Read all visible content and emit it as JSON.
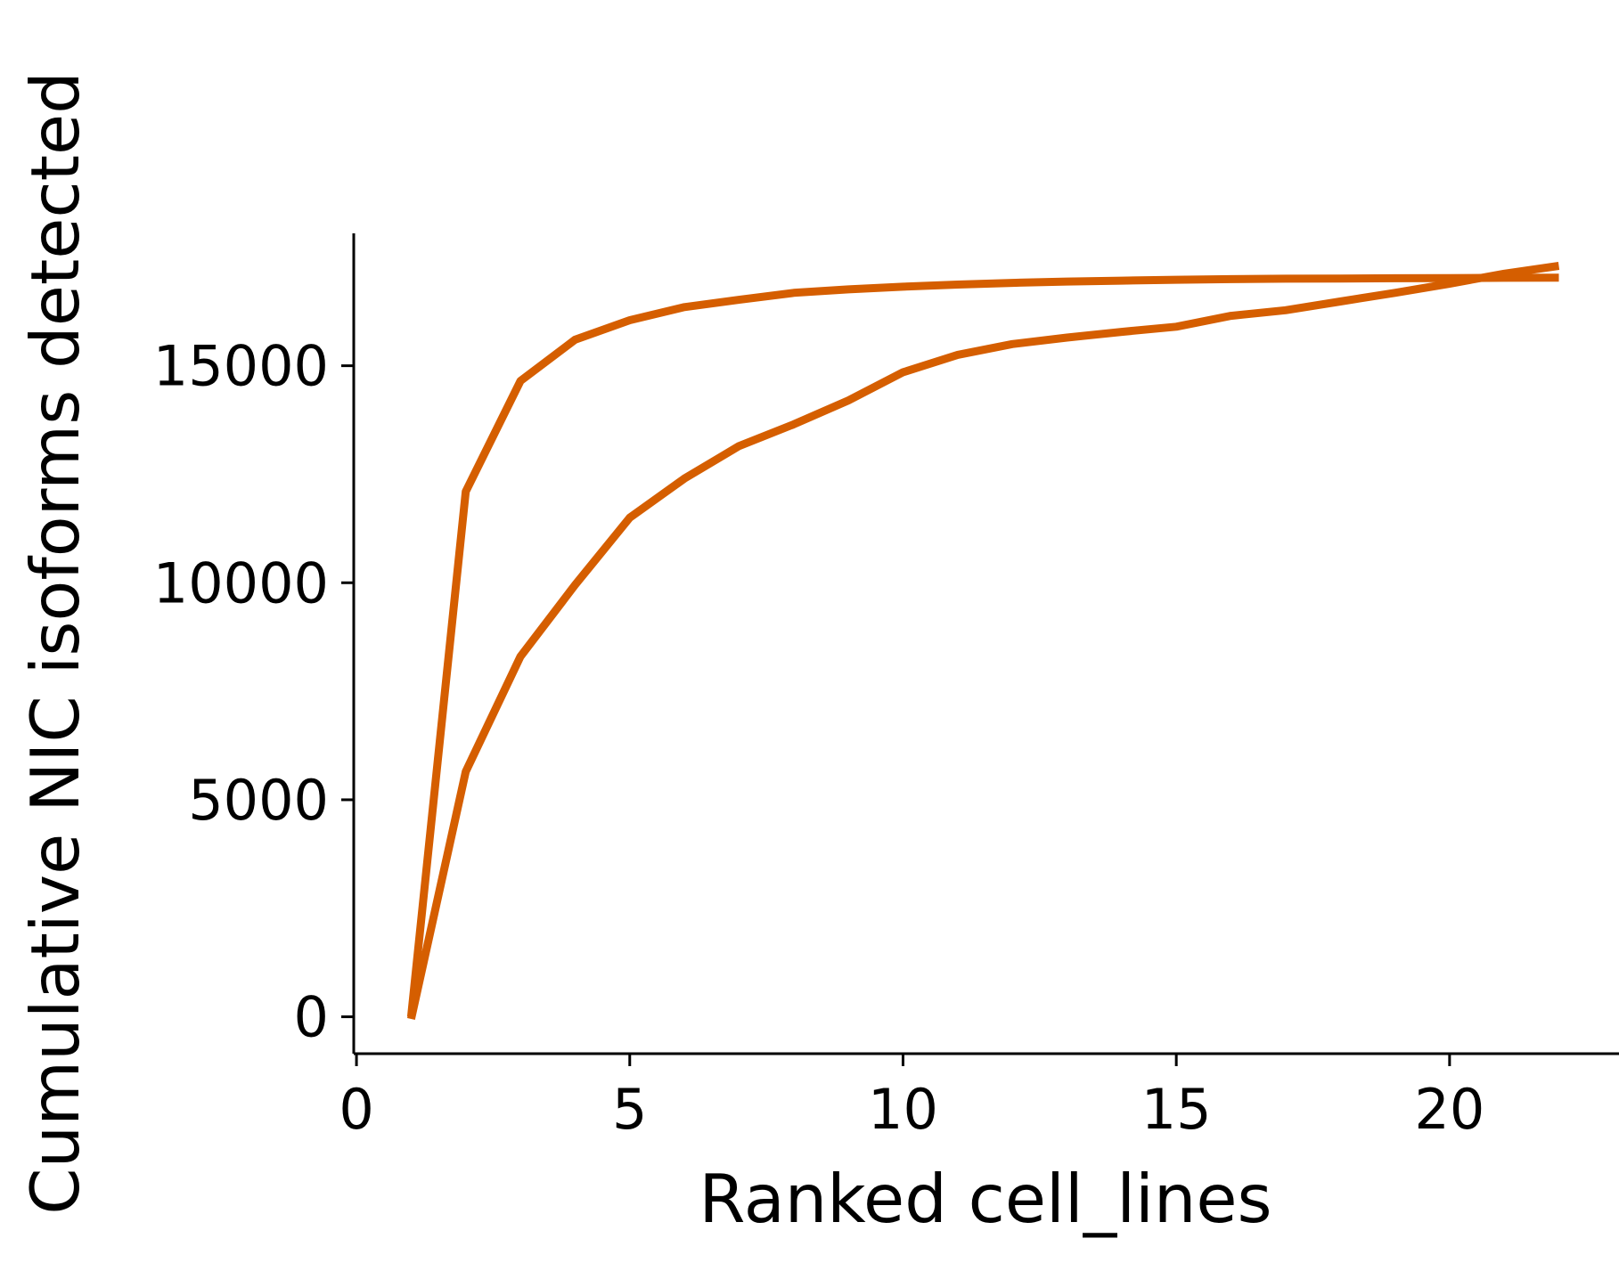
{
  "chart_data": {
    "type": "line",
    "xlabel": "Ranked cell_lines",
    "ylabel": "Cumulative NIC isoforms detected",
    "xlim": [
      -0.05,
      23.1
    ],
    "ylim": [
      -850,
      18050
    ],
    "xticks": [
      0,
      5,
      10,
      15,
      20
    ],
    "yticks": [
      0,
      5000,
      10000,
      15000
    ],
    "x_tick_labels": [
      "0",
      "5",
      "10",
      "15",
      "20"
    ],
    "y_tick_labels": [
      "0",
      "5000",
      "10000",
      "15000"
    ],
    "grid": false,
    "line_color": "#d55e00",
    "series": [
      {
        "x": [
          1,
          2,
          3,
          4,
          5,
          6,
          7,
          8,
          9,
          10,
          11,
          12,
          13,
          14,
          15,
          16,
          17,
          18,
          19,
          20,
          21,
          22
        ],
        "y": [
          0,
          12100,
          14650,
          15600,
          16050,
          16350,
          16520,
          16680,
          16760,
          16820,
          16870,
          16910,
          16940,
          16960,
          16980,
          16995,
          17005,
          17010,
          17015,
          17020,
          17025,
          17030
        ]
      },
      {
        "x": [
          1,
          2,
          3,
          4,
          5,
          6,
          7,
          8,
          9,
          10,
          11,
          12,
          13,
          14,
          15,
          16,
          17,
          18,
          19,
          20,
          21,
          22
        ],
        "y": [
          -50,
          5650,
          8300,
          9950,
          11500,
          12400,
          13150,
          13650,
          14200,
          14850,
          15250,
          15500,
          15650,
          15780,
          15900,
          16150,
          16280,
          16480,
          16680,
          16890,
          17120,
          17300
        ]
      }
    ]
  }
}
